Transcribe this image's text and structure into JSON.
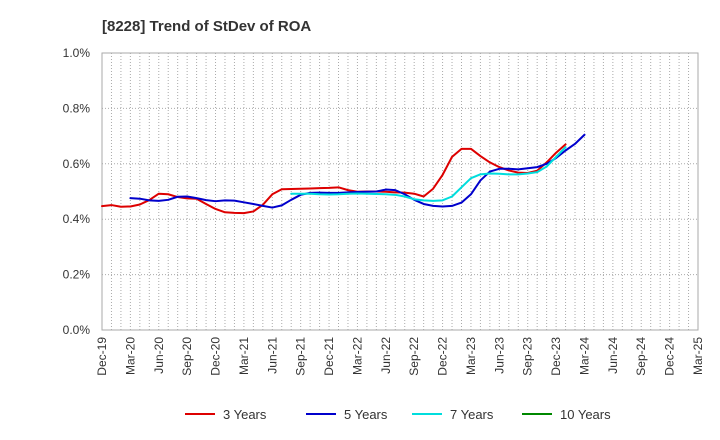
{
  "chart_data": {
    "type": "line",
    "title": "[8228]  Trend of StDev of ROA",
    "xlabel": "",
    "ylabel": "",
    "ylim": [
      0,
      1.0
    ],
    "y_ticks": [
      "0.0%",
      "0.2%",
      "0.4%",
      "0.6%",
      "0.8%",
      "1.0%"
    ],
    "x_ticks": [
      "Dec-19",
      "Mar-20",
      "Jun-20",
      "Sep-20",
      "Dec-20",
      "Mar-21",
      "Jun-21",
      "Sep-21",
      "Dec-21",
      "Mar-22",
      "Jun-22",
      "Sep-22",
      "Dec-22",
      "Mar-23",
      "Jun-23",
      "Sep-23",
      "Dec-23",
      "Mar-24",
      "Jun-24",
      "Sep-24",
      "Dec-24",
      "Mar-25"
    ],
    "grid": true,
    "legend_position": "bottom",
    "series": [
      {
        "name": "3 Years",
        "color": "#dd0000",
        "start_index": 0,
        "values": [
          0.447,
          0.451,
          0.445,
          0.446,
          0.453,
          0.469,
          0.492,
          0.49,
          0.48,
          0.475,
          0.474,
          0.455,
          0.437,
          0.425,
          0.423,
          0.422,
          0.428,
          0.452,
          0.49,
          0.508,
          0.509,
          0.51,
          0.511,
          0.512,
          0.513,
          0.515,
          0.505,
          0.499,
          0.5,
          0.5,
          0.499,
          0.497,
          0.496,
          0.492,
          0.482,
          0.51,
          0.56,
          0.625,
          0.654,
          0.654,
          0.628,
          0.605,
          0.588,
          0.576,
          0.568,
          0.567,
          0.575,
          0.605,
          0.64,
          0.67
        ]
      },
      {
        "name": "5 Years",
        "color": "#0000cc",
        "start_index": 3,
        "values": [
          0.476,
          0.474,
          0.468,
          0.466,
          0.47,
          0.481,
          0.482,
          0.476,
          0.469,
          0.465,
          0.468,
          0.467,
          0.461,
          0.455,
          0.448,
          0.442,
          0.45,
          0.47,
          0.488,
          0.495,
          0.496,
          0.495,
          0.495,
          0.497,
          0.498,
          0.499,
          0.5,
          0.507,
          0.505,
          0.49,
          0.47,
          0.455,
          0.448,
          0.446,
          0.448,
          0.46,
          0.49,
          0.54,
          0.572,
          0.582,
          0.582,
          0.58,
          0.584,
          0.588,
          0.6,
          0.621,
          0.648,
          0.672,
          0.705
        ]
      },
      {
        "name": "7 Years",
        "color": "#00dddd",
        "start_index": 20,
        "values": [
          0.492,
          0.492,
          0.492,
          0.49,
          0.489,
          0.49,
          0.492,
          0.493,
          0.492,
          0.491,
          0.49,
          0.488,
          0.482,
          0.472,
          0.468,
          0.466,
          0.468,
          0.482,
          0.515,
          0.548,
          0.562,
          0.565,
          0.564,
          0.562,
          0.562,
          0.565,
          0.57,
          0.59,
          0.625,
          0.66
        ]
      },
      {
        "name": "10 Years",
        "color": "#008800",
        "start_index": 49,
        "values": []
      }
    ]
  }
}
